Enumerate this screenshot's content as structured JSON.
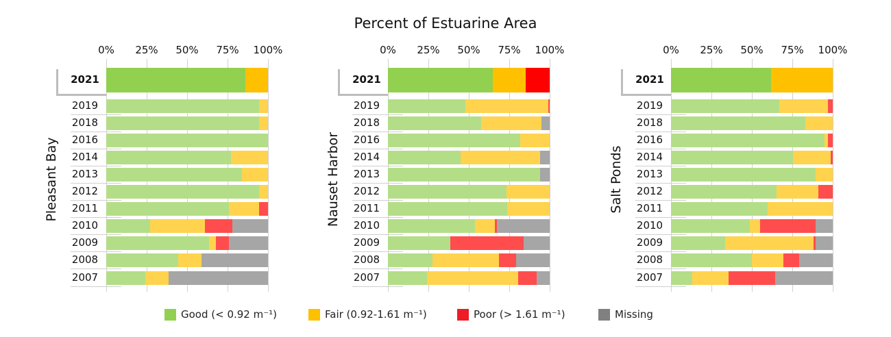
{
  "chart_data": {
    "type": "bar",
    "orientation": "horizontal-stacked",
    "title": "Percent of Estuarine Area",
    "xlim": [
      0,
      100
    ],
    "x_ticks": [
      "0%",
      "25%",
      "50%",
      "75%",
      "100%"
    ],
    "grid": true,
    "legend_position": "bottom",
    "categories": [
      "2021",
      "2019",
      "2018",
      "2016",
      "2014",
      "2013",
      "2012",
      "2011",
      "2010",
      "2009",
      "2008",
      "2007"
    ],
    "legend": [
      {
        "name": "Good (< 0.92 m⁻¹)",
        "color": "#92D050"
      },
      {
        "name": "Fair (0.92-1.61 m⁻¹)",
        "color": "#FFC000"
      },
      {
        "name": "Poor (> 1.61 m⁻¹)",
        "color": "#EE1C25"
      },
      {
        "name": "Missing",
        "color": "#808080"
      }
    ],
    "colors_highlight": {
      "good": "#92D050",
      "fair": "#FFC000",
      "poor": "#FF0000",
      "missing": "#A6A6A6"
    },
    "colors_other": {
      "good": "#B3DE87",
      "fair": "#FFD34D",
      "poor": "#FF4D4D",
      "missing": "#A6A6A6"
    },
    "panels": [
      {
        "label": "Pleasant Bay",
        "rows": [
          [
            86,
            14,
            0,
            0
          ],
          [
            94.3,
            5.7,
            0,
            0
          ],
          [
            94.3,
            5.7,
            0,
            0
          ],
          [
            100,
            0,
            0,
            0
          ],
          [
            77,
            23,
            0,
            0
          ],
          [
            84,
            16,
            0,
            0
          ],
          [
            94.3,
            5.7,
            0,
            0
          ],
          [
            75.7,
            19,
            5.3,
            0
          ],
          [
            27,
            34,
            17,
            22
          ],
          [
            63.4,
            4.4,
            8,
            24.2
          ],
          [
            44.4,
            14.7,
            0,
            40.9
          ],
          [
            24,
            14.6,
            0,
            61.4
          ]
        ]
      },
      {
        "label": "Nauset Harbor",
        "rows": [
          [
            65,
            20,
            15,
            0
          ],
          [
            47.7,
            51.5,
            0.8,
            0
          ],
          [
            57.6,
            37.2,
            0,
            5.2
          ],
          [
            81.8,
            18.2,
            0,
            0
          ],
          [
            44.8,
            49.4,
            0,
            5.8
          ],
          [
            94.2,
            0,
            0,
            5.8
          ],
          [
            73.5,
            26.5,
            0,
            0
          ],
          [
            73.8,
            26.2,
            0,
            0
          ],
          [
            53.7,
            12.6,
            1.2,
            32.5
          ],
          [
            38.6,
            0,
            45.3,
            16.1
          ],
          [
            27.7,
            41,
            10.6,
            20.7
          ],
          [
            24.3,
            56.3,
            11.5,
            7.9
          ]
        ]
      },
      {
        "label": "Salt Ponds",
        "rows": [
          [
            61.7,
            38.3,
            0,
            0
          ],
          [
            66.8,
            30.1,
            3.1,
            0
          ],
          [
            83.2,
            16.8,
            0,
            0
          ],
          [
            94.9,
            2,
            3.1,
            0
          ],
          [
            75.4,
            23.3,
            1.3,
            0
          ],
          [
            89.4,
            10.6,
            0,
            0
          ],
          [
            65.1,
            25.8,
            9.1,
            0
          ],
          [
            59.7,
            40.3,
            0,
            0
          ],
          [
            48.8,
            6.4,
            34.2,
            10.6
          ],
          [
            33.4,
            54.6,
            1.4,
            10.6
          ],
          [
            50.2,
            19.5,
            9.4,
            20.9
          ],
          [
            13.2,
            22.4,
            28.9,
            35.5
          ]
        ]
      }
    ]
  }
}
